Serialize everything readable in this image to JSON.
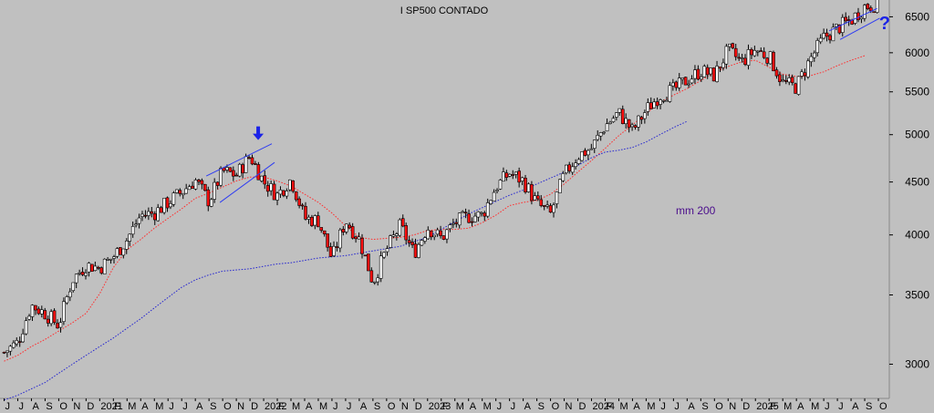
{
  "chart_data": {
    "type": "candlestick",
    "title": "I SP500 CONTADO",
    "scale": "log",
    "ylim": [
      2780,
      6720
    ],
    "ytick_values": [
      3000,
      3500,
      4000,
      4500,
      5000,
      5500,
      6000,
      6500
    ],
    "ytick_labels": [
      "3000",
      "3500",
      "4000",
      "4500",
      "5000",
      "5500",
      "6000",
      "6500"
    ],
    "x_months": [
      "J",
      "J",
      "A",
      "S",
      "O",
      "N",
      "D",
      "2021",
      "F",
      "M",
      "A",
      "M",
      "J",
      "J",
      "A",
      "S",
      "O",
      "N",
      "D",
      "2022",
      "F",
      "M",
      "A",
      "M",
      "J",
      "J",
      "A",
      "S",
      "O",
      "N",
      "D",
      "2023",
      "F",
      "M",
      "A",
      "M",
      "J",
      "J",
      "A",
      "S",
      "O",
      "N",
      "D",
      "2024",
      "F",
      "M",
      "A",
      "M",
      "J",
      "J",
      "A",
      "S",
      "O",
      "N",
      "D",
      "2025",
      "F",
      "M",
      "A",
      "M",
      "J",
      "J",
      "A",
      "S",
      "O"
    ],
    "x_start_index": -0.3,
    "x_end_index": 64.8,
    "price_monthly": [
      3080,
      3150,
      3420,
      3360,
      3270,
      3620,
      3740,
      3720,
      3810,
      3960,
      4180,
      4200,
      4300,
      4400,
      4520,
      4310,
      4610,
      4570,
      4770,
      4500,
      4370,
      4530,
      4150,
      4130,
      3790,
      4130,
      3960,
      3600,
      3870,
      4080,
      3840,
      4070,
      3970,
      4110,
      4170,
      4180,
      4450,
      4590,
      4510,
      4290,
      4190,
      4570,
      4770,
      4850,
      5100,
      5250,
      5040,
      5280,
      5460,
      5520,
      5650,
      5760,
      5700,
      6030,
      5880,
      6040,
      5950,
      5610,
      5560,
      5910,
      6200,
      6340,
      6450,
      6650,
      6690
    ],
    "ma_short_name": "",
    "ma_short_color": "#ff3030",
    "ma_short": [
      3020,
      3060,
      3120,
      3170,
      3230,
      3290,
      3360,
      3510,
      3720,
      3870,
      3960,
      4060,
      4150,
      4240,
      4340,
      4390,
      4450,
      4510,
      4550,
      4550,
      4510,
      4460,
      4380,
      4300,
      4200,
      4080,
      3980,
      3960,
      3970,
      3980,
      4000,
      4040,
      4050,
      4050,
      4060,
      4110,
      4180,
      4270,
      4300,
      4320,
      4380,
      4480,
      4600,
      4720,
      4850,
      4990,
      5110,
      5240,
      5370,
      5460,
      5540,
      5640,
      5740,
      5820,
      5880,
      5900,
      5810,
      5720,
      5690,
      5700,
      5750,
      5830,
      5900,
      5960
    ],
    "ma_long_name": "mm 200",
    "ma_long_color": "#2a2ad0",
    "ma_long": [
      2770,
      2800,
      2840,
      2880,
      2940,
      3000,
      3060,
      3120,
      3180,
      3250,
      3320,
      3400,
      3480,
      3560,
      3620,
      3660,
      3690,
      3700,
      3710,
      3730,
      3750,
      3760,
      3780,
      3800,
      3810,
      3820,
      3840,
      3860,
      3880,
      3900,
      3940,
      3980,
      4050,
      4120,
      4190,
      4250,
      4310,
      4370,
      4420,
      4480,
      4540,
      4600,
      4670,
      4750,
      4810,
      4830,
      4860,
      4920,
      5000,
      5080,
      5150
    ],
    "annotations": {
      "ma_long_label": "mm 200",
      "question_mark": "?",
      "down_arrow_color": "#1a22e8",
      "channel_color": "#2e3cf2"
    },
    "colors": {
      "up": "#ffffff",
      "down": "#ff1010",
      "outline": "#000000",
      "background": "#c0c0c0"
    }
  }
}
